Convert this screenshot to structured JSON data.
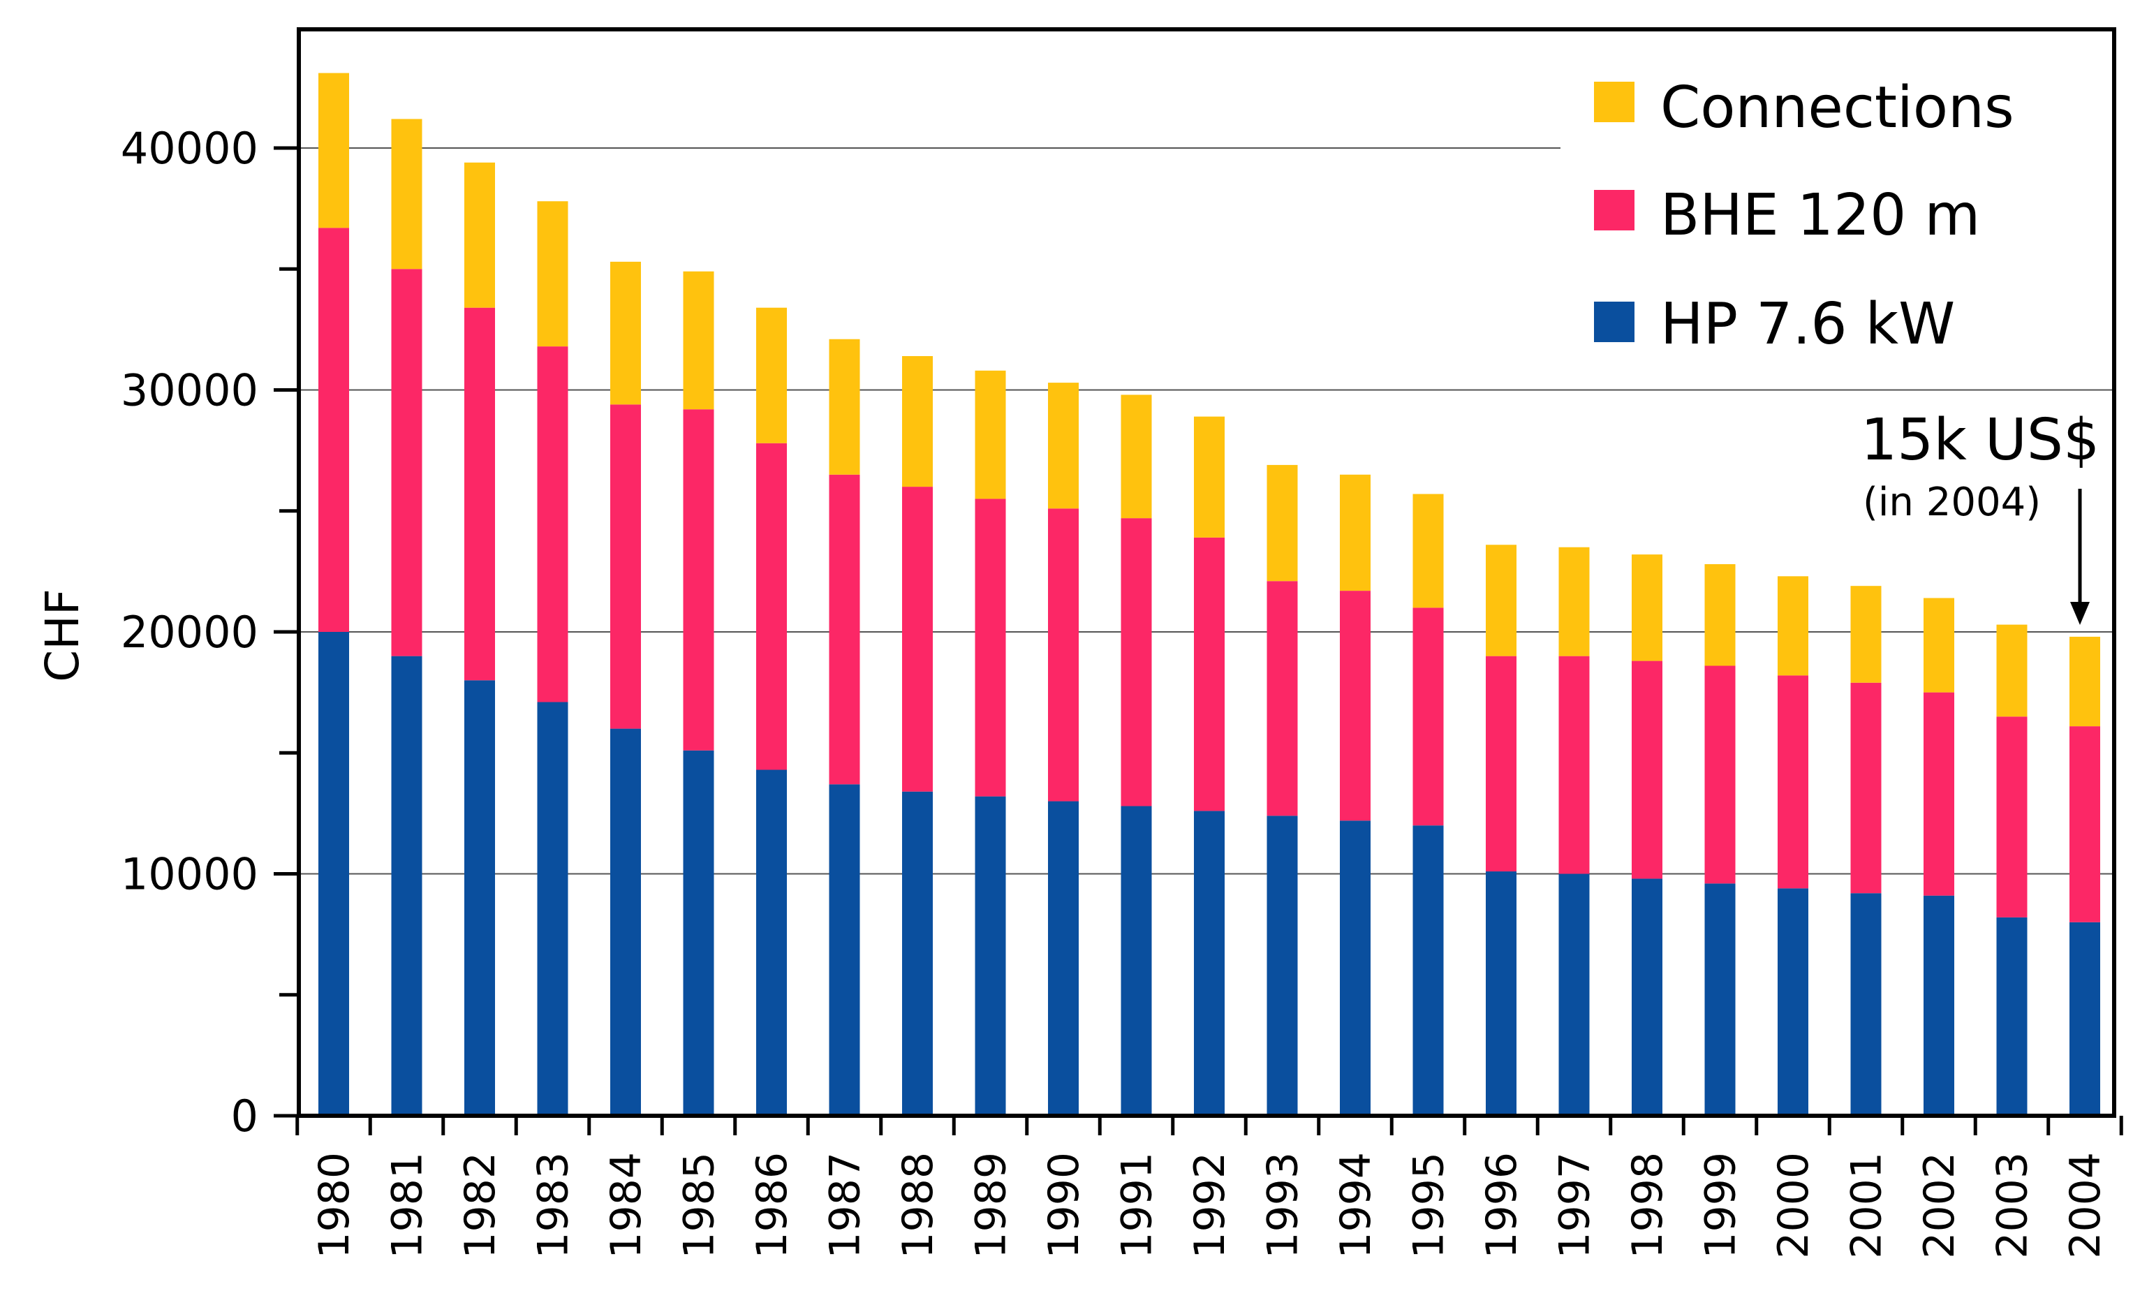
{
  "chart_data": {
    "type": "bar",
    "stacked": true,
    "title": "",
    "xlabel": "",
    "ylabel": "CHF",
    "ylim": [
      0,
      45000
    ],
    "yticks": [
      0,
      10000,
      20000,
      30000,
      40000
    ],
    "ytick_labels": [
      "0",
      "10000",
      "20000",
      "30000",
      "40000"
    ],
    "grid": "horizontal at major ticks",
    "legend_position": "top-right",
    "categories": [
      "1980",
      "1981",
      "1982",
      "1983",
      "1984",
      "1985",
      "1986",
      "1987",
      "1988",
      "1989",
      "1990",
      "1991",
      "1992",
      "1993",
      "1994",
      "1995",
      "1996",
      "1997",
      "1998",
      "1999",
      "2000",
      "2001",
      "2002",
      "2003",
      "2004"
    ],
    "series": [
      {
        "name": "HP 7.6 kW",
        "color": "#0a4f9e",
        "values": [
          20000,
          19000,
          18000,
          17100,
          16000,
          15100,
          14300,
          13700,
          13400,
          13200,
          13000,
          12800,
          12600,
          12400,
          12200,
          12000,
          10100,
          10000,
          9800,
          9600,
          9400,
          9200,
          9100,
          8200,
          8000
        ]
      },
      {
        "name": "BHE 120 m",
        "color": "#fc2766",
        "values": [
          16700,
          16000,
          15400,
          14700,
          13400,
          14100,
          13500,
          12800,
          12600,
          12300,
          12100,
          11900,
          11300,
          9700,
          9500,
          9000,
          8900,
          9000,
          9000,
          9000,
          8800,
          8700,
          8400,
          8300,
          8100
        ]
      },
      {
        "name": "Connections",
        "color": "#ffc20e",
        "values": [
          6400,
          6200,
          6000,
          6000,
          5900,
          5700,
          5600,
          5600,
          5400,
          5300,
          5200,
          5100,
          5000,
          4800,
          4800,
          4700,
          4600,
          4500,
          4400,
          4200,
          4100,
          4000,
          3900,
          3800,
          3700
        ]
      }
    ],
    "legend_order": [
      "Connections",
      "BHE 120 m",
      "HP 7.6 kW"
    ],
    "annotation": {
      "text": "15k US$",
      "subtext": "(in 2004)",
      "target_category": "2004"
    }
  }
}
